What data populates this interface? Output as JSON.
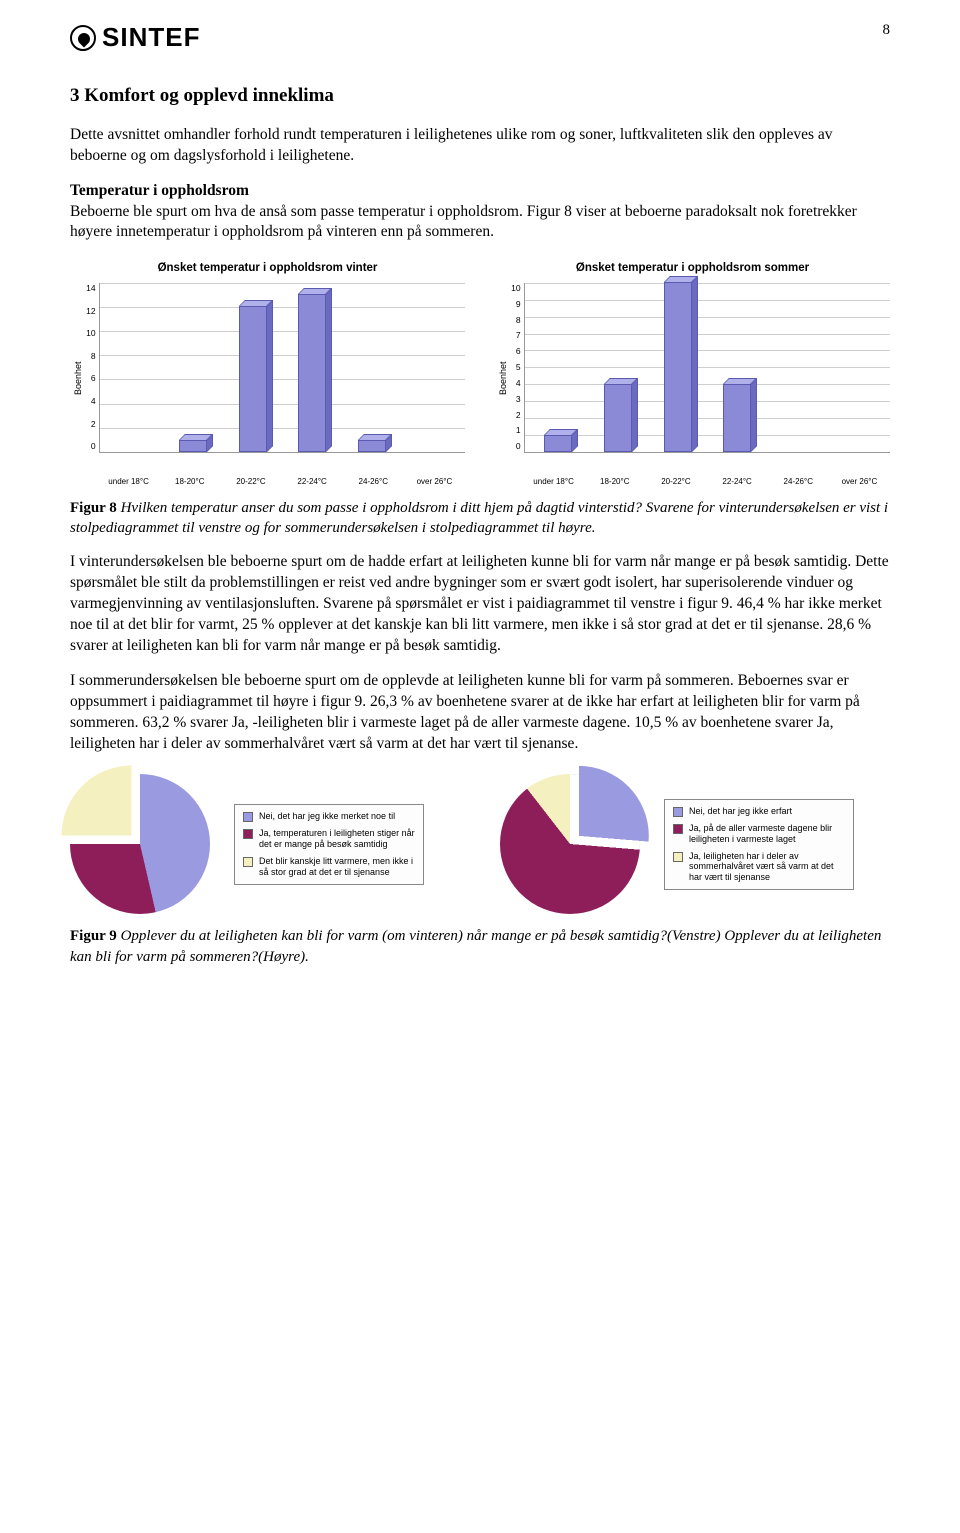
{
  "page_number": "8",
  "logo_text": "SINTEF",
  "heading": "3  Komfort og opplevd inneklima",
  "intro": "Dette avsnittet omhandler forhold rundt temperaturen i leilighetenes ulike rom og soner, luftkvaliteten slik den oppleves av beboerne og om dagslysforhold i leilighetene.",
  "sub1_title": "Temperatur i oppholdsrom",
  "sub1_p1": "Beboerne ble spurt om hva de anså som passe temperatur i oppholdsrom. Figur 8 viser at beboerne paradoksalt nok foretrekker høyere innetemperatur i oppholdsrom på vinteren enn på sommeren.",
  "chart_winter": {
    "title": "Ønsket temperatur i oppholdsrom vinter",
    "y_label": "Boenhet",
    "y_max": 14,
    "y_ticks": [
      "0",
      "2",
      "4",
      "6",
      "8",
      "10",
      "12",
      "14"
    ],
    "categories": [
      "under 18°C",
      "18-20°C",
      "20-22°C",
      "22-24°C",
      "24-26°C",
      "over 26°C"
    ],
    "values": [
      0,
      1,
      12,
      13,
      1,
      0
    ],
    "bar_color": "#8a8ad6",
    "grid_color": "#cfcfcf"
  },
  "chart_summer": {
    "title": "Ønsket temperatur i oppholdsrom sommer",
    "y_label": "Boenhet",
    "y_max": 10,
    "y_ticks": [
      "0",
      "1",
      "2",
      "3",
      "4",
      "5",
      "6",
      "7",
      "8",
      "9",
      "10"
    ],
    "categories": [
      "under 18°C",
      "18-20°C",
      "20-22°C",
      "22-24°C",
      "24-26°C",
      "over 26°C"
    ],
    "values": [
      1,
      4,
      10,
      4,
      0,
      0
    ],
    "bar_color": "#8a8ad6",
    "grid_color": "#cfcfcf"
  },
  "fig8_label": "Figur 8",
  "fig8_text": " Hvilken temperatur anser du som passe i oppholdsrom i ditt hjem på dagtid vinterstid? Svarene for vinterundersøkelsen er vist i stolpediagrammet til venstre og for sommerundersøkelsen i stolpediagrammet til høyre.",
  "para2": "I vinterundersøkelsen ble beboerne spurt om de hadde erfart at leiligheten kunne bli for varm når mange er på besøk samtidig. Dette spørsmålet ble stilt da problemstillingen er reist ved andre bygninger som er svært godt isolert, har superisolerende vinduer og varmegjenvinning av ventilasjonsluften. Svarene på spørsmålet er vist i paidiagrammet til venstre i figur 9. 46,4 % har ikke merket noe til at det blir for varmt, 25 % opplever at det kanskje kan bli litt varmere, men ikke i så stor grad at det er til sjenanse. 28,6 % svarer at leiligheten kan bli for varm når mange er på besøk samtidig.",
  "para3": "I sommerundersøkelsen ble beboerne spurt om de opplevde at leiligheten kunne bli for varm på sommeren. Beboernes svar er oppsummert i paidiagrammet til høyre i figur 9. 26,3 % av boenhetene svarer at de ikke har erfart at leiligheten blir for varm på sommeren. 63,2 % svarer Ja, -leiligheten blir i varmeste laget på de aller varmeste dagene. 10,5 % av boenhetene svarer Ja, leiligheten har i deler av sommerhalvåret vært så varm at det har vært til sjenanse.",
  "pie_left": {
    "slices": [
      {
        "label": "Nei, det har jeg ikke merket noe til",
        "value": 46.4,
        "color": "#9a9ae0"
      },
      {
        "label": "Ja, temperaturen i leiligheten stiger når det er mange på besøk samtidig",
        "value": 28.6,
        "color": "#8e1e5a"
      },
      {
        "label": "Det blir kanskje litt varmere, men ikke i så stor grad at det er til sjenanse",
        "value": 25.0,
        "color": "#f5f0c0"
      }
    ]
  },
  "pie_right": {
    "slices": [
      {
        "label": "Nei, det har jeg ikke erfart",
        "value": 26.3,
        "color": "#9a9ae0"
      },
      {
        "label": "Ja, på de aller varmeste dagene blir leiligheten i varmeste laget",
        "value": 63.2,
        "color": "#8e1e5a"
      },
      {
        "label": "Ja, leiligheten har i deler av sommerhalvåret vært så varm at det har vært til sjenanse",
        "value": 10.5,
        "color": "#f5f0c0"
      }
    ]
  },
  "fig9_label": "Figur 9",
  "fig9_text": " Opplever du at leiligheten kan bli for varm (om vinteren) når mange er på besøk samtidig?(Venstre) Opplever du at leiligheten kan bli for varm på sommeren?(Høyre)."
}
